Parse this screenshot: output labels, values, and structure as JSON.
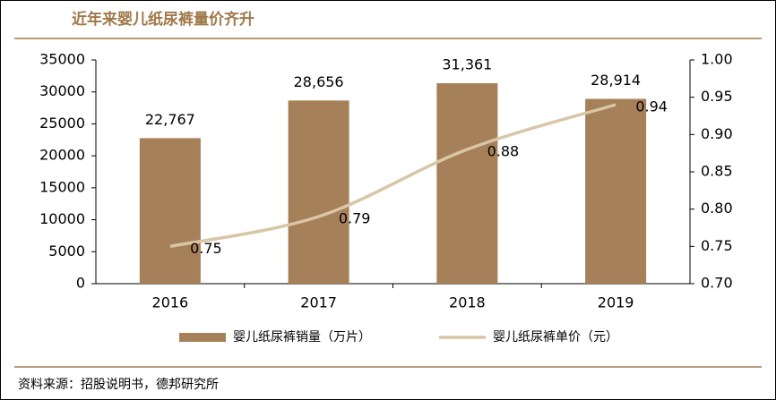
{
  "chart_data": {
    "type": "combo",
    "title": "近年来婴儿纸尿裤量价齐升",
    "source": "资料来源：招股说明书，德邦研究所",
    "categories": [
      "2016",
      "2017",
      "2018",
      "2019"
    ],
    "series": [
      {
        "name": "婴儿纸尿裤销量（万片）",
        "type": "bar",
        "color": "#a68058",
        "values": [
          22767,
          28656,
          31361,
          28914
        ],
        "value_labels": [
          "22,767",
          "28,656",
          "31,361",
          "28,914"
        ]
      },
      {
        "name": "婴儿纸尿裤单价（元）",
        "type": "line",
        "axis": "y2",
        "color": "#d8c6a6",
        "values": [
          0.75,
          0.79,
          0.88,
          0.94
        ]
      }
    ],
    "ylim": [
      0,
      35000
    ],
    "yticks": [
      0,
      5000,
      10000,
      15000,
      20000,
      25000,
      30000,
      35000
    ],
    "y2lim": [
      0.7,
      1.0
    ],
    "y2ticks": [
      {
        "value": 0.7,
        "label": "0.70"
      },
      0.75,
      {
        "value": 0.8,
        "label": "0.80"
      },
      0.85,
      {
        "value": 0.9,
        "label": "0.90"
      },
      0.95,
      {
        "value": 1.0,
        "label": "1.00"
      }
    ],
    "legend": "bottom"
  }
}
